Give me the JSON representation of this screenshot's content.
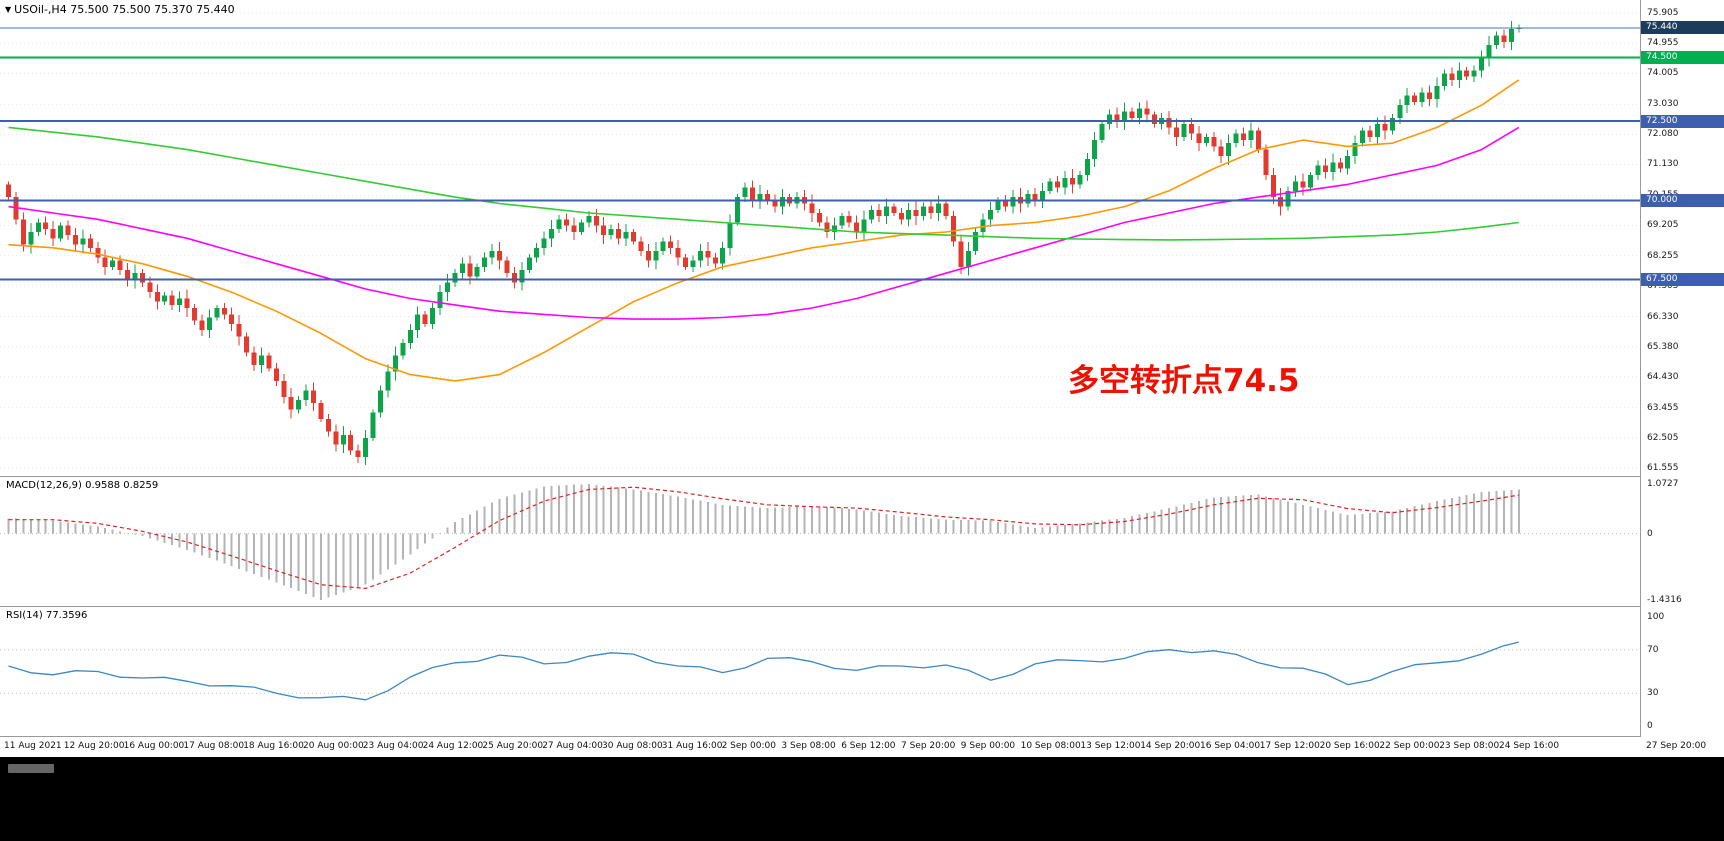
{
  "window": {
    "title_marker": "▼",
    "title": "USOil-,H4 75.500 75.500 75.370 75.440"
  },
  "panels": {
    "macd_label": "MACD(12,26,9) 0.9588 0.8259",
    "rsi_label": "RSI(14) 77.3596"
  },
  "annotation": {
    "text": "多空转折点74.5"
  },
  "colors": {
    "bull": "#0ca44a",
    "bear": "#e23a2e",
    "ma_fast": "#ff9800",
    "ma_mid": "#ff00ff",
    "ma_slow": "#33cc33",
    "hline_green": "#00b050",
    "hline_blue": "#3e5fb0",
    "current_line": "#4a74b8",
    "current_badge_bg": "#1d3c5c",
    "macd_hist": "#b4b4b4",
    "macd_signal": "#e02020",
    "rsi_line": "#3a87c8",
    "grid": "#e7e7e7",
    "panel_border": "#9a9a9a",
    "background": "#ffffff",
    "annotation_red": "#ee1100",
    "axis_text": "#1a1a1a"
  },
  "price_axis": {
    "labels": [
      "75.905",
      "74.955",
      "74.005",
      "73.030",
      "72.080",
      "71.130",
      "70.155",
      "69.205",
      "68.255",
      "67.305",
      "66.330",
      "65.380",
      "64.430",
      "63.455",
      "62.505",
      "61.555"
    ],
    "badges": [
      {
        "text": "75.440",
        "price": 75.44,
        "style": "current"
      },
      {
        "text": "74.500",
        "price": 74.5,
        "style": "green"
      },
      {
        "text": "72.500",
        "price": 72.5,
        "style": "blue"
      },
      {
        "text": "70.000",
        "price": 70.0,
        "style": "blue"
      },
      {
        "text": "67.500",
        "price": 67.5,
        "style": "blue"
      }
    ]
  },
  "time_axis": {
    "labels": [
      "11 Aug 2021",
      "12 Aug 20:00",
      "16 Aug 00:00",
      "17 Aug 08:00",
      "18 Aug 16:00",
      "20 Aug 00:00",
      "23 Aug 04:00",
      "24 Aug 12:00",
      "25 Aug 20:00",
      "27 Aug 04:00",
      "30 Aug 08:00",
      "31 Aug 16:00",
      "2 Sep 00:00",
      "3 Sep 08:00",
      "6 Sep 12:00",
      "7 Sep 20:00",
      "9 Sep 00:00",
      "10 Sep 08:00",
      "13 Sep 12:00",
      "14 Sep 20:00",
      "16 Sep 04:00",
      "17 Sep 12:00",
      "20 Sep 16:00",
      "22 Sep 00:00",
      "23 Sep 08:00",
      "24 Sep 16:00",
      "27 Sep 20:00"
    ]
  },
  "chart_data": [
    {
      "type": "candlestick",
      "title": "USOil-,H4",
      "symbol": "USOil-",
      "timeframe": "H4",
      "current_bar": {
        "open": 75.5,
        "high": 75.5,
        "low": 75.37,
        "close": 75.44
      },
      "ylim": [
        61.3,
        76.32
      ],
      "y_ticks": [
        75.905,
        74.955,
        74.005,
        73.03,
        72.08,
        71.13,
        70.155,
        69.205,
        68.255,
        67.305,
        66.33,
        65.38,
        64.43,
        63.455,
        62.505,
        61.555
      ],
      "first_open": 70.5,
      "ohlc_note": "H4 closes, left=11 Aug 2021, right=27 Sep 2021; open[i]=close[i-1]",
      "closes": [
        70.1,
        69.4,
        68.6,
        69.0,
        69.3,
        69.1,
        68.8,
        69.2,
        68.9,
        68.6,
        68.8,
        68.5,
        68.2,
        67.9,
        68.1,
        67.8,
        67.5,
        67.7,
        67.4,
        67.1,
        66.8,
        67.0,
        66.7,
        66.9,
        66.6,
        66.2,
        65.9,
        66.3,
        66.6,
        66.4,
        66.1,
        65.7,
        65.2,
        64.8,
        65.1,
        64.7,
        64.3,
        63.8,
        63.4,
        63.7,
        64.0,
        63.6,
        63.1,
        62.7,
        62.3,
        62.6,
        62.1,
        61.9,
        62.5,
        63.3,
        64.0,
        64.6,
        65.1,
        65.5,
        65.9,
        66.4,
        66.1,
        66.6,
        67.1,
        67.4,
        67.7,
        68.0,
        67.6,
        67.9,
        68.2,
        68.4,
        68.1,
        67.7,
        67.4,
        67.8,
        68.2,
        68.5,
        68.8,
        69.1,
        69.4,
        69.2,
        69.0,
        69.3,
        69.5,
        69.2,
        68.9,
        69.1,
        68.8,
        69.0,
        68.7,
        68.4,
        68.1,
        68.4,
        68.7,
        68.5,
        68.2,
        67.9,
        68.1,
        68.4,
        68.2,
        68.0,
        68.5,
        69.3,
        70.1,
        70.4,
        70.0,
        70.2,
        70.0,
        69.8,
        70.1,
        69.9,
        70.1,
        69.9,
        69.6,
        69.3,
        69.0,
        69.2,
        69.5,
        69.3,
        69.0,
        69.4,
        69.7,
        69.5,
        69.8,
        69.6,
        69.4,
        69.7,
        69.5,
        69.8,
        69.6,
        69.9,
        69.5,
        68.7,
        67.9,
        68.4,
        69.0,
        69.4,
        69.7,
        70.0,
        69.8,
        70.1,
        69.9,
        70.2,
        70.0,
        70.3,
        70.6,
        70.4,
        70.7,
        70.5,
        70.8,
        71.3,
        71.9,
        72.4,
        72.7,
        72.5,
        72.8,
        72.6,
        72.9,
        72.7,
        72.4,
        72.6,
        72.3,
        72.0,
        72.4,
        72.1,
        71.8,
        72.0,
        71.7,
        71.4,
        71.8,
        72.1,
        71.9,
        72.2,
        71.6,
        70.8,
        70.1,
        69.8,
        70.3,
        70.6,
        70.4,
        70.8,
        71.1,
        70.9,
        71.2,
        71.0,
        71.4,
        71.8,
        72.2,
        72.0,
        72.4,
        72.2,
        72.6,
        73.0,
        73.3,
        73.1,
        73.4,
        73.2,
        73.6,
        74.0,
        73.8,
        74.1,
        73.9,
        74.1,
        74.5,
        74.9,
        75.2,
        75.0,
        75.4,
        75.44
      ],
      "hlines": [
        {
          "price": 75.44,
          "style": "current",
          "label": "75.440"
        },
        {
          "price": 74.5,
          "style": "green",
          "label": "74.500"
        },
        {
          "price": 72.5,
          "style": "blue",
          "label": "72.500"
        },
        {
          "price": 70.0,
          "style": "blue",
          "label": "70.000"
        },
        {
          "price": 67.5,
          "style": "blue",
          "label": "67.500"
        }
      ],
      "overlays": [
        {
          "name": "ma-fast",
          "color_key": "ma_fast",
          "sample_step": 6,
          "values": [
            68.6,
            68.5,
            68.3,
            68.0,
            67.6,
            67.1,
            66.5,
            65.8,
            65.0,
            64.5,
            64.3,
            64.5,
            65.2,
            66.0,
            66.8,
            67.4,
            67.9,
            68.2,
            68.5,
            68.7,
            68.9,
            69.0,
            69.2,
            69.3,
            69.5,
            69.8,
            70.3,
            71.0,
            71.6,
            71.9,
            71.7,
            71.8,
            72.3,
            73.0,
            73.8
          ]
        },
        {
          "name": "ma-mid",
          "color_key": "ma_mid",
          "sample_step": 6,
          "values": [
            69.8,
            69.6,
            69.4,
            69.1,
            68.8,
            68.4,
            68.0,
            67.6,
            67.2,
            66.9,
            66.7,
            66.5,
            66.4,
            66.3,
            66.25,
            66.25,
            66.3,
            66.4,
            66.6,
            66.9,
            67.3,
            67.7,
            68.1,
            68.5,
            68.9,
            69.3,
            69.6,
            69.9,
            70.1,
            70.3,
            70.5,
            70.8,
            71.1,
            71.6,
            72.3
          ]
        },
        {
          "name": "ma-slow",
          "color_key": "ma_slow",
          "sample_step": 6,
          "values": [
            72.3,
            72.15,
            72.0,
            71.8,
            71.6,
            71.35,
            71.1,
            70.85,
            70.6,
            70.35,
            70.1,
            69.9,
            69.75,
            69.6,
            69.5,
            69.4,
            69.3,
            69.2,
            69.1,
            69.0,
            68.95,
            68.9,
            68.85,
            68.8,
            68.78,
            68.76,
            68.75,
            68.76,
            68.78,
            68.8,
            68.85,
            68.9,
            69.0,
            69.15,
            69.3
          ]
        }
      ],
      "annotation": "多空转折点74.5"
    },
    {
      "type": "macd",
      "title": "MACD(12,26,9)",
      "current_main": 0.9588,
      "current_signal": 0.8259,
      "ylim": [
        -1.56,
        1.22
      ],
      "y_ticks": [
        1.0727,
        0,
        -1.4316
      ],
      "sample_step": 6,
      "main": [
        0.33,
        0.28,
        0.15,
        -0.05,
        -0.35,
        -0.7,
        -1.05,
        -1.43,
        -1.1,
        -0.45,
        0.25,
        0.75,
        1.02,
        1.07,
        0.95,
        0.8,
        0.62,
        0.55,
        0.6,
        0.52,
        0.38,
        0.3,
        0.28,
        0.12,
        0.22,
        0.34,
        0.55,
        0.78,
        0.84,
        0.62,
        0.4,
        0.48,
        0.7,
        0.9,
        0.96
      ],
      "signal": [
        0.3,
        0.3,
        0.22,
        0.05,
        -0.18,
        -0.48,
        -0.8,
        -1.1,
        -1.18,
        -0.85,
        -0.3,
        0.28,
        0.7,
        0.95,
        1.0,
        0.9,
        0.75,
        0.62,
        0.58,
        0.55,
        0.46,
        0.36,
        0.3,
        0.21,
        0.19,
        0.26,
        0.42,
        0.62,
        0.76,
        0.73,
        0.54,
        0.45,
        0.56,
        0.7,
        0.83
      ]
    },
    {
      "type": "line",
      "title": "RSI(14)",
      "current": 77.3596,
      "ylim": [
        0,
        100
      ],
      "levels": [
        70,
        30
      ],
      "y_ticks": [
        100,
        70,
        30,
        0
      ],
      "sample_step": 6,
      "values": [
        55,
        47,
        50,
        44,
        41,
        37,
        30,
        26,
        24,
        45,
        58,
        65,
        57,
        64,
        66,
        55,
        49,
        62,
        59,
        51,
        55,
        56,
        42,
        57,
        60,
        62,
        70,
        69,
        58,
        53,
        38,
        50,
        58,
        66,
        77
      ]
    }
  ]
}
